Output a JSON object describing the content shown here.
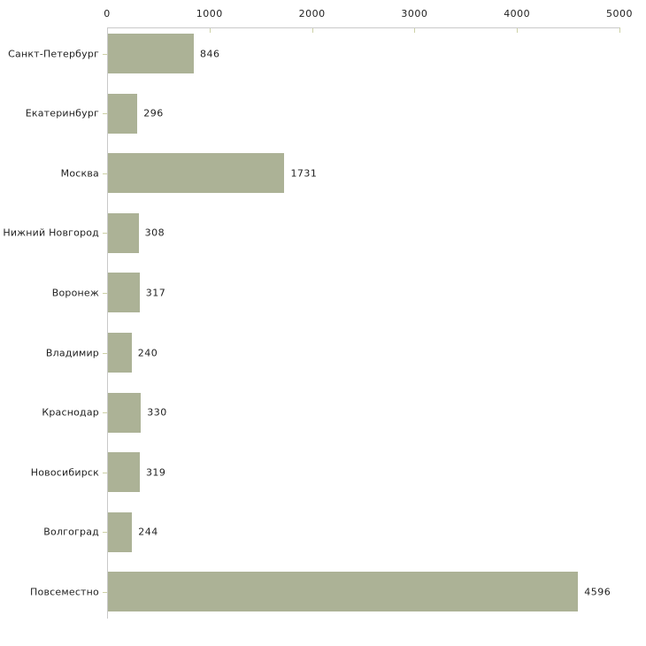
{
  "chart_data": {
    "type": "bar",
    "orientation": "horizontal",
    "title": "",
    "xlabel": "",
    "ylabel": "",
    "categories": [
      "Санкт-Петербург",
      "Екатеринбург",
      "Москва",
      "Нижний Новгород",
      "Воронеж",
      "Владимир",
      "Краснодар",
      "Новосибирск",
      "Волгоград",
      "Повсеместно"
    ],
    "values": [
      846,
      296,
      1731,
      308,
      317,
      240,
      330,
      319,
      244,
      4596
    ],
    "value_labels": [
      "846",
      "296",
      "1731",
      "308",
      "317",
      "240",
      "330",
      "319",
      "244",
      "4596"
    ],
    "x_axis": {
      "position": "top",
      "min": 0,
      "max": 5000,
      "tick_values": [
        0,
        1000,
        2000,
        3000,
        4000,
        5000
      ],
      "tick_labels": [
        "0",
        "1000",
        "2000",
        "3000",
        "4000",
        "5000"
      ]
    },
    "grid": false,
    "legend": false,
    "colors": {
      "bar_fill": "#acb296",
      "axis_line": "#c9c9c9",
      "tick_mark": "#cdd1a6",
      "text": "#1f1f1f",
      "background": "#ffffff"
    }
  }
}
